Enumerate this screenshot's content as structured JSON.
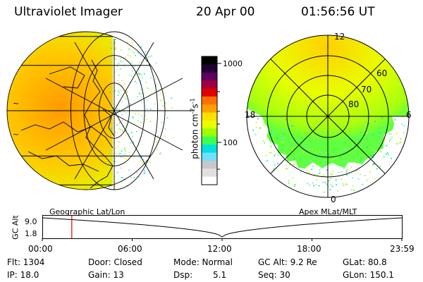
{
  "header": {
    "instrument": "Ultraviolet Imager",
    "date": "20 Apr 00",
    "time": "01:56:56 UT"
  },
  "colorbar": {
    "unit_label": "photon cm",
    "unit_exp1": "-2",
    "unit_mid": "s",
    "unit_exp2": "-1",
    "ticks": [
      "1000",
      "100"
    ],
    "scale": "log",
    "colors": [
      "#ffffff",
      "#e0e0e0",
      "#c8c8c8",
      "#6fe0ff",
      "#00e0e0",
      "#3cff50",
      "#9cff00",
      "#e8ff00",
      "#ffe000",
      "#ffa000",
      "#ff7000",
      "#e00000",
      "#a00040",
      "#600060",
      "#200030",
      "#000000"
    ]
  },
  "left_map": {
    "caption": "Geographic Lat/Lon"
  },
  "right_map": {
    "caption": "Apex MLat/MLT",
    "mlt_labels": {
      "top": "12",
      "left": "18",
      "right": "6",
      "bottom": "0"
    },
    "lat_labels": [
      "60",
      "70",
      "80"
    ]
  },
  "altitude_plot": {
    "ylabel": "GC Alt",
    "yticks": [
      "9.0",
      "1.8"
    ],
    "xticks": [
      "00:00",
      "06:00",
      "12:00",
      "18:00",
      "23:59"
    ],
    "current_time_fraction": 0.082
  },
  "status": {
    "flt": "Flt: 1304",
    "door": "Door: Closed",
    "mode": "Mode: Normal",
    "gc_alt": "GC Alt: 9.2 Re",
    "glat": "GLat:  80.8",
    "ip": "IP: 18.0",
    "gain": "Gain: 13",
    "dsp_label": "Dsp:",
    "dsp_value": "5.1",
    "seq": "Seq: 30",
    "glon": "GLon: 150.1"
  }
}
